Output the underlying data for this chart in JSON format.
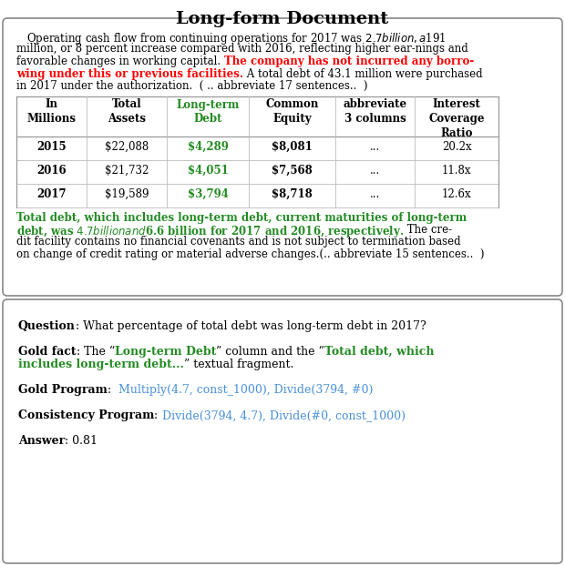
{
  "title": "Long-form Document",
  "top_para_lines": [
    {
      "parts": [
        {
          "text": "   Operating cash flow from continuing operations for 2017 was $2.7 billion, a $191",
          "color": "black",
          "bold": false
        }
      ]
    },
    {
      "parts": [
        {
          "text": "million, or 8 percent increase compared with 2016, reflecting higher ear-nings and",
          "color": "black",
          "bold": false
        }
      ]
    },
    {
      "parts": [
        {
          "text": "favorable changes in working capital. ",
          "color": "black",
          "bold": false
        },
        {
          "text": "The company has not incurred any borro-",
          "color": "red",
          "bold": true
        }
      ]
    },
    {
      "parts": [
        {
          "text": "wing under this or previous facilities.",
          "color": "red",
          "bold": true
        },
        {
          "text": " A total debt of 43.1 million were purchased",
          "color": "black",
          "bold": false
        }
      ]
    },
    {
      "parts": [
        {
          "text": "in 2017 under the authorization.  ( .. abbreviate 17 sentences..  )",
          "color": "black",
          "bold": false
        }
      ]
    }
  ],
  "table_headers": [
    "In\nMillions",
    "Total\nAssets",
    "Long-term\nDebt",
    "Common\nEquity",
    "abbreviate\n3 columns",
    "Interest\nCoverage\nRatio"
  ],
  "table_header_colors": [
    "black",
    "black",
    "#228B22",
    "black",
    "black",
    "black"
  ],
  "table_rows": [
    [
      "2015",
      "$22,088",
      "$4,289",
      "$8,081",
      "...",
      "20.2x"
    ],
    [
      "2016",
      "$21,732",
      "$4,051",
      "$7,568",
      "...",
      "11.8x"
    ],
    [
      "2017",
      "$19,589",
      "$3,794",
      "$8,718",
      "...",
      "12.6x"
    ]
  ],
  "table_row_styles": [
    [
      {
        "bold": true,
        "color": "black"
      },
      {
        "bold": false,
        "color": "black"
      },
      {
        "bold": true,
        "color": "#228B22"
      },
      {
        "bold": true,
        "color": "black"
      },
      {
        "bold": false,
        "color": "black"
      },
      {
        "bold": false,
        "color": "black"
      }
    ],
    [
      {
        "bold": true,
        "color": "black"
      },
      {
        "bold": false,
        "color": "black"
      },
      {
        "bold": true,
        "color": "#228B22"
      },
      {
        "bold": true,
        "color": "black"
      },
      {
        "bold": false,
        "color": "black"
      },
      {
        "bold": false,
        "color": "black"
      }
    ],
    [
      {
        "bold": true,
        "color": "black"
      },
      {
        "bold": false,
        "color": "black"
      },
      {
        "bold": true,
        "color": "#228B22"
      },
      {
        "bold": true,
        "color": "black"
      },
      {
        "bold": false,
        "color": "black"
      },
      {
        "bold": false,
        "color": "black"
      }
    ]
  ],
  "bot_para_lines": [
    {
      "parts": [
        {
          "text": "Total debt, which includes long-term debt, current maturities of long-term",
          "color": "#228B22",
          "bold": true
        }
      ]
    },
    {
      "parts": [
        {
          "text": "debt, was $ 4.7 billion and $6.6 billion for 2017 and 2016, respectively.",
          "color": "#228B22",
          "bold": true
        },
        {
          "text": " The cre-",
          "color": "black",
          "bold": false
        }
      ]
    },
    {
      "parts": [
        {
          "text": "dit facility contains no financial covenants and is not subject to termination based",
          "color": "black",
          "bold": false
        }
      ]
    },
    {
      "parts": [
        {
          "text": "on change of credit rating or material adverse changes.(.. abbreviate 15 sentences..  )",
          "color": "black",
          "bold": false
        }
      ]
    }
  ],
  "q_lines": [
    {
      "parts": [
        {
          "text": "Question",
          "color": "black",
          "bold": true
        },
        {
          "text": ": What percentage of total debt was long-term debt in 2017?",
          "color": "black",
          "bold": false
        }
      ]
    },
    {
      "parts": []
    },
    {
      "parts": [
        {
          "text": "Gold fact",
          "color": "black",
          "bold": true
        },
        {
          "text": ": The “",
          "color": "black",
          "bold": false
        },
        {
          "text": "Long-term Debt",
          "color": "#228B22",
          "bold": true
        },
        {
          "text": "” column and the “",
          "color": "black",
          "bold": false
        },
        {
          "text": "Total debt, which",
          "color": "#228B22",
          "bold": true
        }
      ]
    },
    {
      "parts": [
        {
          "text": "includes long-term debt...",
          "color": "#228B22",
          "bold": true
        },
        {
          "text": "” textual fragment.",
          "color": "black",
          "bold": false
        }
      ]
    },
    {
      "parts": []
    },
    {
      "parts": [
        {
          "text": "Gold Program",
          "color": "black",
          "bold": true
        },
        {
          "text": ":  ",
          "color": "black",
          "bold": false
        },
        {
          "text": "Multiply(4.7, const_1000), Divide(3794, #0)",
          "color": "#4A90D9",
          "bold": false
        }
      ]
    },
    {
      "parts": []
    },
    {
      "parts": [
        {
          "text": "Consistency Program",
          "color": "black",
          "bold": true
        },
        {
          "text": ": ",
          "color": "black",
          "bold": false
        },
        {
          "text": "Divide(3794, 4.7), Divide(#0, const_1000)",
          "color": "#4A90D9",
          "bold": false
        }
      ]
    },
    {
      "parts": []
    },
    {
      "parts": [
        {
          "text": "Answer",
          "color": "black",
          "bold": true
        },
        {
          "text": ": 0.81",
          "color": "black",
          "bold": false
        }
      ]
    }
  ],
  "colors": {
    "red": "#FF0000",
    "green": "#228B22",
    "cyan": "#4A90D9",
    "black": "#000000",
    "bg": "#FFFFFF",
    "box_border": "#888888"
  },
  "font_size_body": 8.5,
  "font_size_title": 14,
  "font_size_table": 8.5,
  "font_size_bottom": 9.0
}
